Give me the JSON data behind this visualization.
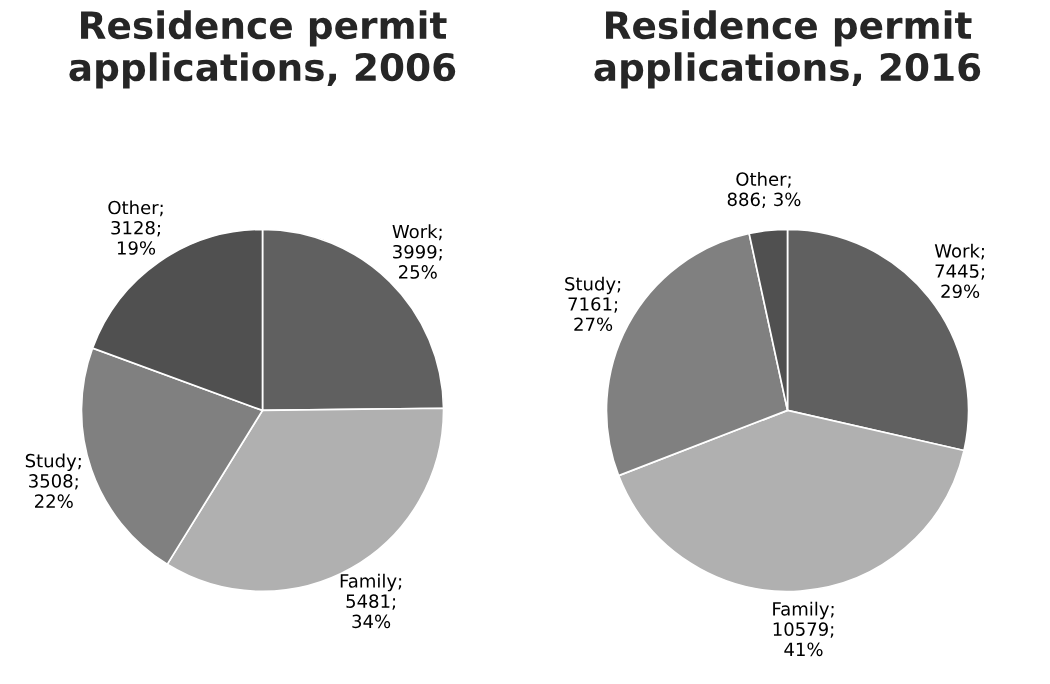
{
  "chart_data": [
    {
      "type": "pie",
      "title": "Residence permit\napplications, 2006",
      "categories": [
        "Work",
        "Family",
        "Study",
        "Other"
      ],
      "values": [
        3999,
        5481,
        3508,
        3128
      ],
      "colors": [
        "#606060",
        "#b0b0b0",
        "#808080",
        "#505050"
      ],
      "value_labels": [
        ";\n3999;\n25%",
        ";\n5481;\n34%",
        ";\n3508;\n22%",
        ";\n3128;\n19%"
      ]
    },
    {
      "type": "pie",
      "title": "Residence permit\napplications, 2016",
      "categories": [
        "Work",
        "Family",
        "Study",
        "Other"
      ],
      "values": [
        7445,
        10579,
        7161,
        886
      ],
      "colors": [
        "#606060",
        "#b0b0b0",
        "#808080",
        "#505050"
      ],
      "value_labels": [
        ";\n7445;\n29%",
        ";\n10579;\n41%",
        ";\n7161;\n27%",
        ";\n886; 3%"
      ]
    }
  ]
}
